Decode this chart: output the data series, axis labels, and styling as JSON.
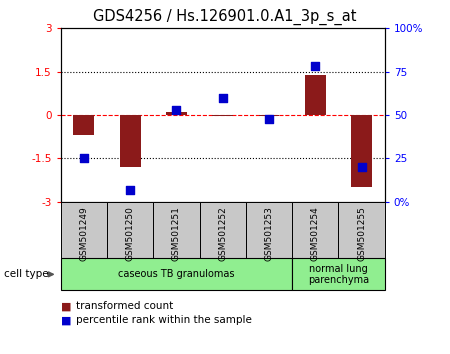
{
  "title": "GDS4256 / Hs.126901.0.A1_3p_s_at",
  "samples": [
    "GSM501249",
    "GSM501250",
    "GSM501251",
    "GSM501252",
    "GSM501253",
    "GSM501254",
    "GSM501255"
  ],
  "red_bars": [
    -0.7,
    -1.8,
    0.1,
    -0.05,
    -0.05,
    1.4,
    -2.5
  ],
  "blue_vals_pct": [
    25,
    7,
    53,
    60,
    48,
    78,
    20
  ],
  "ylim_left": [
    -3,
    3
  ],
  "ylim_right": [
    0,
    100
  ],
  "yticks_left": [
    -3,
    -1.5,
    0,
    1.5,
    3
  ],
  "yticks_right": [
    0,
    25,
    50,
    75,
    100
  ],
  "ytick_labels_left": [
    "-3",
    "-1.5",
    "0",
    "1.5",
    "3"
  ],
  "ytick_labels_right": [
    "0%",
    "25",
    "50",
    "75",
    "100%"
  ],
  "hlines": [
    -1.5,
    0,
    1.5
  ],
  "hline_styles": [
    "dotted",
    "dashed",
    "dotted"
  ],
  "hline_colors": [
    "black",
    "red",
    "black"
  ],
  "bar_color": "#8B1A1A",
  "dot_color": "#0000CC",
  "bar_width": 0.45,
  "title_fontsize": 10.5,
  "tick_fontsize": 7.5,
  "sample_fontsize": 6.5,
  "legend_fontsize": 7.5,
  "group_fontsize": 7,
  "cell_type_fontsize": 7.5,
  "group1_label": "caseous TB granulomas",
  "group1_samples": 5,
  "group2_label": "normal lung\nparenchyma",
  "group2_samples": 2,
  "group_color": "#90EE90",
  "sample_box_color": "#C8C8C8",
  "legend1": "transformed count",
  "legend2": "percentile rank within the sample"
}
